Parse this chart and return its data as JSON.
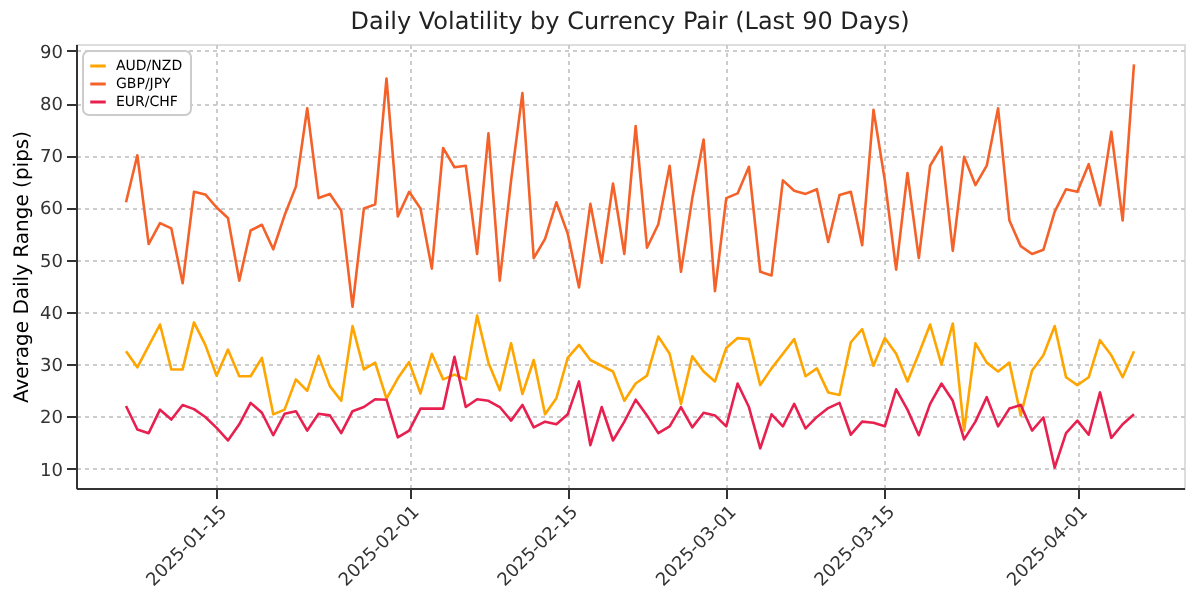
{
  "chart_data": {
    "type": "line",
    "title": "Daily Volatility by Currency Pair (Last 90 Days)",
    "ylabel": "Average Daily Range (pips)",
    "x": [
      "2025-01-07",
      "2025-01-08",
      "2025-01-09",
      "2025-01-10",
      "2025-01-11",
      "2025-01-12",
      "2025-01-13",
      "2025-01-14",
      "2025-01-15",
      "2025-01-16",
      "2025-01-17",
      "2025-01-18",
      "2025-01-19",
      "2025-01-20",
      "2025-01-21",
      "2025-01-22",
      "2025-01-23",
      "2025-01-24",
      "2025-01-25",
      "2025-01-26",
      "2025-01-27",
      "2025-01-28",
      "2025-01-29",
      "2025-01-30",
      "2025-01-31",
      "2025-02-01",
      "2025-02-02",
      "2025-02-03",
      "2025-02-04",
      "2025-02-05",
      "2025-02-06",
      "2025-02-07",
      "2025-02-08",
      "2025-02-09",
      "2025-02-10",
      "2025-02-11",
      "2025-02-12",
      "2025-02-13",
      "2025-02-14",
      "2025-02-15",
      "2025-02-16",
      "2025-02-17",
      "2025-02-18",
      "2025-02-19",
      "2025-02-20",
      "2025-02-21",
      "2025-02-22",
      "2025-02-23",
      "2025-02-24",
      "2025-02-25",
      "2025-02-26",
      "2025-02-27",
      "2025-02-28",
      "2025-03-01",
      "2025-03-02",
      "2025-03-03",
      "2025-03-04",
      "2025-03-05",
      "2025-03-06",
      "2025-03-07",
      "2025-03-08",
      "2025-03-09",
      "2025-03-10",
      "2025-03-11",
      "2025-03-12",
      "2025-03-13",
      "2025-03-14",
      "2025-03-15",
      "2025-03-16",
      "2025-03-17",
      "2025-03-18",
      "2025-03-19",
      "2025-03-20",
      "2025-03-21",
      "2025-03-22",
      "2025-03-23",
      "2025-03-24",
      "2025-03-25",
      "2025-03-26",
      "2025-03-27",
      "2025-03-28",
      "2025-03-29",
      "2025-03-30",
      "2025-03-31",
      "2025-04-01",
      "2025-04-02",
      "2025-04-03",
      "2025-04-04",
      "2025-04-05",
      "2025-04-06"
    ],
    "series": [
      {
        "name": "AUD/NZD",
        "color": "#ffa500",
        "values": [
          32.5,
          29.4,
          33.5,
          37.6,
          29,
          29,
          38,
          33.7,
          27.8,
          32.8,
          27.7,
          27.7,
          31.2,
          20.4,
          21.3,
          27.1,
          24.9,
          31.6,
          25.8,
          23,
          37.3,
          29,
          30.3,
          23.4,
          27.3,
          30.4,
          24.4,
          32,
          27.1,
          28,
          27.1,
          39.3,
          30.3,
          25,
          34,
          24.3,
          30.8,
          20.4,
          23.5,
          31.2,
          33.7,
          30.8,
          29.7,
          28.6,
          23,
          26.3,
          27.8,
          35.3,
          32,
          22.4,
          31.5,
          28.6,
          26.7,
          33.1,
          35,
          34.8,
          26,
          29.2,
          32,
          34.8,
          27.7,
          29.2,
          24.6,
          24.1,
          34.2,
          36.7,
          29.7,
          35,
          32,
          26.7,
          32,
          37.6,
          29.9,
          37.8,
          17.3,
          34,
          30.3,
          28.6,
          30.3,
          20.2,
          28.8,
          31.7,
          37.3,
          27.5,
          26,
          27.5,
          34.6,
          31.7,
          27.5,
          32.5
        ]
      },
      {
        "name": "GBP/JPY",
        "color": "#f4622a",
        "values": [
          61,
          70,
          53,
          57,
          56,
          45.5,
          63,
          62.5,
          60,
          58,
          46,
          55.6,
          56.7,
          52,
          58.5,
          64,
          79,
          61.8,
          62.6,
          59.4,
          41,
          59.8,
          60.6,
          84.7,
          58.3,
          63,
          59.8,
          48.3,
          71.4,
          67.7,
          68,
          51.1,
          74.2,
          46,
          65.2,
          81.9,
          50.3,
          54,
          61,
          55,
          44.7,
          60.7,
          49.4,
          64.6,
          51.1,
          75.6,
          52.3,
          56.8,
          68,
          47.7,
          61.8,
          73,
          44,
          61.8,
          62.7,
          67.8,
          47.7,
          47,
          65.2,
          63.2,
          62.6,
          63.5,
          53.4,
          62.4,
          63,
          52.8,
          78.7,
          65.2,
          48.1,
          66.6,
          50.3,
          68,
          71.6,
          51.7,
          69.7,
          64.3,
          68,
          79,
          57.5,
          52.6,
          51.1,
          51.9,
          59.2,
          63.5,
          63,
          68.3,
          60.4,
          74.5,
          57.5,
          87.4
        ]
      },
      {
        "name": "EUR/CHF",
        "color": "#e8204f",
        "values": [
          22,
          17.5,
          16.8,
          21.3,
          19.4,
          22.2,
          21.4,
          19.9,
          17.8,
          15.4,
          18.5,
          22.6,
          20.7,
          16.4,
          20.5,
          21,
          17.3,
          20.5,
          20.2,
          16.8,
          21,
          21.8,
          23.3,
          23.2,
          16,
          17.3,
          21.5,
          21.5,
          21.5,
          31.4,
          21.8,
          23.3,
          23,
          21.8,
          19.2,
          22.2,
          17.9,
          19,
          18.5,
          20.4,
          26.7,
          14.5,
          21.8,
          15.4,
          19,
          23.2,
          20.2,
          16.8,
          18.1,
          21.8,
          17.9,
          20.7,
          20.2,
          18.1,
          26.3,
          21.8,
          13.9,
          20.4,
          18.1,
          22.4,
          17.7,
          19.9,
          21.6,
          22.6,
          16.5,
          19,
          18.8,
          18.1,
          25.2,
          21.3,
          16.4,
          22.4,
          26.3,
          23,
          15.6,
          19,
          23.7,
          18.1,
          21.5,
          22.2,
          17.3,
          19.8,
          10.2,
          16.8,
          19.2,
          16.5,
          24.6,
          15.9,
          18.5,
          20.4
        ]
      }
    ],
    "xlim": [
      "2025-01-02T14:00",
      "2025-04-10T10:00"
    ],
    "xticks": [
      "2025-01-15",
      "2025-02-01",
      "2025-02-15",
      "2025-03-01",
      "2025-03-15",
      "2025-04-01"
    ],
    "ylim": [
      6.3,
      91.3
    ],
    "yticks": [
      10,
      20,
      30,
      40,
      50,
      60,
      70,
      80,
      90
    ],
    "grid": true,
    "legend": "top left",
    "marker": "none",
    "line_style": "solid"
  }
}
